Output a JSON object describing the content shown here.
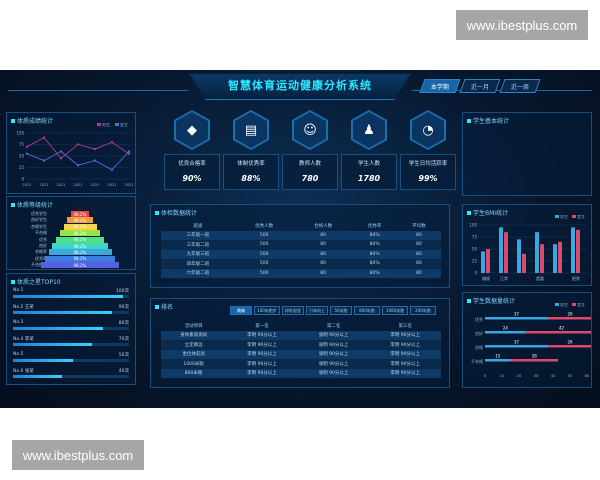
{
  "watermark": "www.ibestplus.com",
  "title": "智慧体育运动健康分析系统",
  "tabs": [
    "本学期",
    "近一月",
    "近一周"
  ],
  "left_top": {
    "title": "体质成绩统计",
    "legend": [
      "男生",
      "女生"
    ],
    "y_ticks": [
      "100",
      "75",
      "50",
      "25",
      "0"
    ],
    "x_ticks": [
      "2021",
      "2021",
      "2021",
      "2021",
      "2021",
      "2021",
      "2021"
    ],
    "series": [
      {
        "name": "男生",
        "values": [
          70,
          90,
          45,
          75,
          65,
          80,
          55
        ],
        "color": "#b03a8f"
      },
      {
        "name": "女生",
        "values": [
          55,
          40,
          60,
          30,
          40,
          20,
          60
        ],
        "color": "#4b6fd6"
      }
    ]
  },
  "left_mid": {
    "title": "体质等级统计",
    "labels": [
      "优秀学生",
      "良好学生",
      "合格学生",
      "不合格",
      "优秀",
      "良好",
      "合格率",
      "优秀率",
      "不合格率"
    ],
    "values": [
      "98.2%",
      "98.2%",
      "98.2%",
      "98.2%",
      "98.2%",
      "98.2%",
      "98.2%",
      "98.2%",
      "98.2%"
    ],
    "colors": [
      "#e94a4a",
      "#f39c3c",
      "#f1d54a",
      "#9de04f",
      "#4fe07f",
      "#3fd6c8",
      "#3aa8e0",
      "#3a7ce0",
      "#5a5ee0"
    ]
  },
  "left_bottom": {
    "title": "体质之星TOP10",
    "rows": [
      {
        "name": "No.1",
        "value": "100次",
        "pct": 0.95
      },
      {
        "name": "No.2 王某",
        "value": "90次",
        "pct": 0.85
      },
      {
        "name": "No.3",
        "value": "80次",
        "pct": 0.78
      },
      {
        "name": "No.4 李某",
        "value": "70次",
        "pct": 0.68
      },
      {
        "name": "No.5",
        "value": "50次",
        "pct": 0.52
      },
      {
        "name": "No.6 张某",
        "value": "40次",
        "pct": 0.42
      }
    ]
  },
  "kpis": [
    {
      "icon": "diamond-icon",
      "glyph": "◆",
      "label": "优良合格率",
      "value": "90%"
    },
    {
      "icon": "report-icon",
      "glyph": "▤",
      "label": "体制优秀率",
      "value": "88%"
    },
    {
      "icon": "person-icon",
      "glyph": "☺",
      "label": "教师人数",
      "value": "780"
    },
    {
      "icon": "student-icon",
      "glyph": "♟",
      "label": "学生人数",
      "value": "1780"
    },
    {
      "icon": "pie-icon",
      "glyph": "◔",
      "label": "学生日均活跃率",
      "value": "99%"
    }
  ],
  "mid_table": {
    "title": "体检数据统计",
    "headers": [
      "班级",
      "优秀人数",
      "合格人数",
      "优秀率",
      "平均数"
    ],
    "rows": [
      [
        "三年级一班",
        "500",
        "80",
        "80%",
        "80"
      ],
      [
        "三年级二班",
        "500",
        "80",
        "80%",
        "80"
      ],
      [
        "九年级三班",
        "500",
        "80",
        "80%",
        "80"
      ],
      [
        "四年级二班",
        "500",
        "80",
        "80%",
        "80"
      ],
      [
        "六年级二班",
        "500",
        "80",
        "80%",
        "80"
      ]
    ]
  },
  "bottom_table": {
    "title": "排名",
    "tabs": [
      "跳绳",
      "100米跑步",
      "仰卧起坐",
      "引体向上",
      "50米跑",
      "800米跑",
      "1000米跑",
      "200米跑"
    ],
    "headers": [
      "活动项目",
      "第一名",
      "第二名",
      "第三名"
    ],
    "rows": [
      [
        "身体素质测试",
        "李明 90分以上",
        "张明 90分以上",
        "李明 90分以上"
      ],
      [
        "立定跳远",
        "李明 90分以上",
        "张明 90分以上",
        "李明 90分以上"
      ],
      [
        "坐位体前屈",
        "李明 90分以上",
        "张明 90分以上",
        "李明 90分以上"
      ],
      [
        "1000米跑",
        "李明 90分以上",
        "张明 90分以上",
        "李明 90分以上"
      ],
      [
        "800米跑",
        "李明 90分以上",
        "张明 90分以上",
        "李明 90分以上"
      ]
    ]
  },
  "right_top": {
    "title": "学生基本统计",
    "stats": [
      {
        "label": "男生人数",
        "value": "1780",
        "red": false
      },
      {
        "label": "女生人数",
        "value": "1780",
        "red": true
      },
      {
        "label": "男生平均身高",
        "value": "178.1",
        "unit": "cm",
        "red": false
      },
      {
        "label": "女生平均身高",
        "value": "161.1",
        "unit": "cm",
        "red": true
      },
      {
        "label": "男生平均体重",
        "value": "70.5",
        "unit": "kg",
        "red": false
      },
      {
        "label": "女生平均体重",
        "value": "57.5",
        "unit": "kg",
        "red": true
      }
    ]
  },
  "right_mid": {
    "title": "学生BMI统计",
    "legend": [
      "男生",
      "女生"
    ],
    "y_ticks": [
      "100",
      "75",
      "50",
      "25",
      "0"
    ],
    "categories": [
      "偏瘦",
      "正常",
      "超重",
      "肥胖"
    ],
    "chart_data": {
      "type": "bar",
      "categories": [
        "偏瘦",
        "正常",
        "超重",
        "肥胖"
      ],
      "series": [
        {
          "name": "男生",
          "values": [
            45,
            95,
            85,
            95
          ]
        },
        {
          "name": "女生",
          "values": [
            50,
            85,
            60,
            90
          ]
        }
      ],
      "extra": [
        {
          "name": "男生",
          "values": [
            70,
            60
          ]
        },
        {
          "name": "女生",
          "values": [
            40,
            65
          ]
        }
      ],
      "ylim": [
        0,
        100
      ]
    }
  },
  "right_bottom": {
    "title": "学生数据量统计",
    "legend": [
      "男生",
      "女生"
    ],
    "rows": [
      {
        "label": "优秀",
        "a": 37,
        "b": 26
      },
      {
        "label": "良好",
        "a": 24,
        "b": 42
      },
      {
        "label": "合格",
        "a": 37,
        "b": 26
      },
      {
        "label": "不合格",
        "a": 15,
        "b": 28
      }
    ],
    "x_ticks": [
      "0",
      "10",
      "20",
      "30",
      "40",
      "50",
      "60"
    ]
  }
}
